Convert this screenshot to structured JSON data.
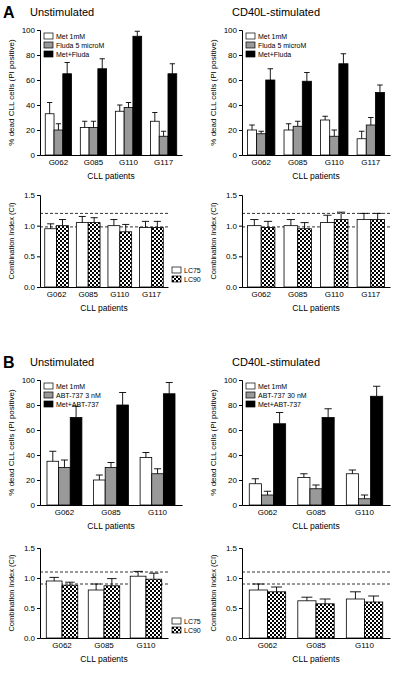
{
  "chart_data": [
    {
      "type": "bar",
      "title": "Unstimulated",
      "annotations": [
        "A"
      ],
      "x_label": "CLL patients",
      "y_label": "% dead CLL cells (PI positive)",
      "categories": [
        "G062",
        "G085",
        "G110",
        "G117"
      ],
      "series": [
        {
          "name": "Met 1mM",
          "color": "#ffffff",
          "values": [
            33,
            22,
            35,
            27
          ],
          "errors": [
            9,
            5,
            5,
            7
          ]
        },
        {
          "name": "Fluda 5 microM",
          "color": "#999999",
          "values": [
            20,
            22,
            38,
            15
          ],
          "errors": [
            5,
            5,
            4,
            4
          ]
        },
        {
          "name": "Met+Fluda",
          "color": "#000000",
          "values": [
            65,
            69,
            95,
            65
          ],
          "errors": [
            9,
            8,
            4,
            8
          ]
        }
      ],
      "ylim": [
        0,
        100
      ],
      "yticks": [
        0,
        20,
        40,
        60,
        80,
        100
      ],
      "legend": "top-left"
    },
    {
      "type": "bar",
      "title": "CD40L-stimulated",
      "x_label": "CLL patients",
      "y_label": "% dead CLL cells (PI positive)",
      "categories": [
        "G062",
        "G085",
        "G110",
        "G117"
      ],
      "series": [
        {
          "name": "Met 1mM",
          "color": "#ffffff",
          "values": [
            20,
            20,
            28,
            13
          ],
          "errors": [
            4,
            5,
            3,
            6
          ]
        },
        {
          "name": "Fluda 5 microM",
          "color": "#999999",
          "values": [
            17,
            23,
            15,
            24
          ],
          "errors": [
            2,
            4,
            5,
            6
          ]
        },
        {
          "name": "Met+Fluda",
          "color": "#000000",
          "values": [
            60,
            59,
            73,
            50
          ],
          "errors": [
            9,
            7,
            8,
            6
          ]
        }
      ],
      "ylim": [
        0,
        100
      ],
      "yticks": [
        0,
        20,
        40,
        60,
        80,
        100
      ],
      "legend": "top-left"
    },
    {
      "type": "bar",
      "x_label": "CLL patients",
      "y_label": "Combination Index (CI)",
      "categories": [
        "G062",
        "G085",
        "G110",
        "G117"
      ],
      "series": [
        {
          "name": "LC75",
          "color": "#ffffff",
          "values": [
            0.95,
            1.05,
            1.0,
            0.97
          ],
          "errors": [
            0.08,
            0.1,
            0.1,
            0.1
          ]
        },
        {
          "name": "LC90",
          "color": "#000000",
          "marker": "checker",
          "values": [
            1.0,
            1.05,
            0.9,
            0.97
          ],
          "errors": [
            0.1,
            0.08,
            0.12,
            0.1
          ]
        }
      ],
      "ylim": [
        0,
        1.5
      ],
      "yticks": [
        {
          "value": 0,
          "label": "0.0"
        },
        0.5,
        {
          "value": 1,
          "label": "1.0"
        },
        1.5
      ],
      "ref_lines": [
        0.98,
        1.2
      ],
      "legend": "right"
    },
    {
      "type": "bar",
      "x_label": "CLL patients",
      "y_label": "Combination Index (CI)",
      "categories": [
        "G062",
        "G085",
        "G110",
        "G117"
      ],
      "series": [
        {
          "color": "#ffffff",
          "values": [
            1.0,
            1.0,
            1.05,
            1.1
          ],
          "errors": [
            0.1,
            0.1,
            0.12,
            0.1
          ]
        },
        {
          "color": "#000000",
          "marker": "checker",
          "values": [
            0.97,
            0.95,
            1.1,
            1.1
          ],
          "errors": [
            0.1,
            0.1,
            0.12,
            0.1
          ]
        }
      ],
      "ylim": [
        0,
        1.5
      ],
      "yticks": [
        {
          "value": 0,
          "label": "0.0"
        },
        0.5,
        {
          "value": 1,
          "label": "1.0"
        },
        1.5
      ],
      "ref_lines": [
        0.98,
        1.2
      ]
    },
    {
      "type": "bar",
      "title": "Unstimulated",
      "annotations": [
        "B"
      ],
      "x_label": "CLL patients",
      "y_label": "% dead CLL cells (PI positive)",
      "categories": [
        "G062",
        "G085",
        "G110"
      ],
      "series": [
        {
          "name": "Met 1mM",
          "color": "#ffffff",
          "values": [
            35,
            20,
            38
          ],
          "errors": [
            8,
            4,
            4
          ]
        },
        {
          "name": "ABT-737 3 nM",
          "color": "#999999",
          "values": [
            30,
            30,
            25
          ],
          "errors": [
            6,
            4,
            4
          ]
        },
        {
          "name": "Met+ABT-737",
          "color": "#000000",
          "values": [
            70,
            80,
            89
          ],
          "errors": [
            9,
            10,
            9
          ]
        }
      ],
      "ylim": [
        0,
        100
      ],
      "yticks": [
        0,
        20,
        40,
        60,
        80,
        100
      ],
      "legend": "top-left"
    },
    {
      "type": "bar",
      "title": "CD40L-stimulated",
      "x_label": "CLL patients",
      "y_label": "% dead CLL cells (PI positive)",
      "categories": [
        "G062",
        "G085",
        "G110"
      ],
      "series": [
        {
          "name": "Met 1mM",
          "color": "#ffffff",
          "values": [
            17,
            22,
            25
          ],
          "errors": [
            4,
            3,
            3
          ]
        },
        {
          "name": "ABT-737 30 nM",
          "color": "#999999",
          "values": [
            8,
            13,
            5
          ],
          "errors": [
            3,
            3,
            3
          ]
        },
        {
          "name": "Met+ABT-737",
          "color": "#000000",
          "values": [
            65,
            70,
            87
          ],
          "errors": [
            9,
            7,
            8
          ]
        }
      ],
      "ylim": [
        0,
        100
      ],
      "yticks": [
        0,
        20,
        40,
        60,
        80,
        100
      ],
      "legend": "top-left"
    },
    {
      "type": "bar",
      "x_label": "CLL patients",
      "y_label": "Combination Index (CI)",
      "categories": [
        "G062",
        "G085",
        "G110"
      ],
      "series": [
        {
          "name": "LC75",
          "color": "#ffffff",
          "values": [
            0.95,
            0.8,
            1.03
          ],
          "errors": [
            0.06,
            0.1,
            0.08
          ]
        },
        {
          "name": "LC90",
          "color": "#000000",
          "marker": "checker",
          "values": [
            0.88,
            0.87,
            0.98
          ],
          "errors": [
            0.05,
            0.12,
            0.1
          ]
        }
      ],
      "ylim": [
        0,
        1.5
      ],
      "yticks": [
        {
          "value": 0,
          "label": "0.0"
        },
        0.5,
        {
          "value": 1,
          "label": "1.0"
        },
        1.5
      ],
      "ref_lines": [
        0.9,
        1.1
      ],
      "legend": "right"
    },
    {
      "type": "bar",
      "x_label": "CLL patients",
      "y_label": "Combination Index (CI)",
      "categories": [
        "G062",
        "G085",
        "G110"
      ],
      "series": [
        {
          "color": "#ffffff",
          "values": [
            0.8,
            0.62,
            0.65
          ],
          "errors": [
            0.1,
            0.06,
            0.12
          ]
        },
        {
          "color": "#000000",
          "marker": "checker",
          "values": [
            0.77,
            0.57,
            0.6
          ],
          "errors": [
            0.08,
            0.08,
            0.1
          ]
        }
      ],
      "ylim": [
        0,
        1.5
      ],
      "yticks": [
        {
          "value": 0,
          "label": "0.0"
        },
        0.5,
        {
          "value": 1,
          "label": "1.0"
        },
        1.5
      ],
      "ref_lines": [
        0.9,
        1.1
      ]
    }
  ]
}
